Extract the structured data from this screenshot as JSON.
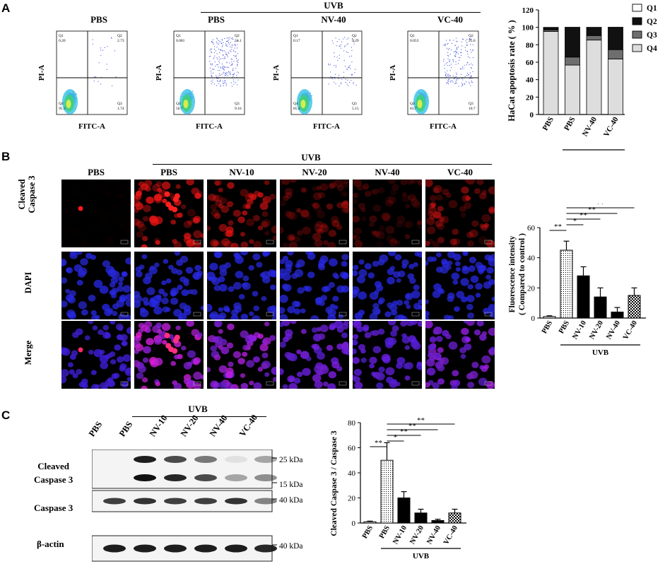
{
  "panels": {
    "a": "A",
    "b": "B",
    "c": "C"
  },
  "panel_a": {
    "uvb": "UVB",
    "flow_plots": [
      {
        "title": "PBS",
        "q1": "0.20",
        "q2": "2.73",
        "q3": "1.74",
        "q4": "95.3",
        "q1_label": "Q1",
        "q2_label": "Q2",
        "q3_label": "Q3",
        "q4_label": "Q4",
        "xlabel": "FITC-A",
        "ylabel": "PI-A"
      },
      {
        "title": "PBS",
        "q1": "0.081",
        "q2": "34.1",
        "q3": "9.16",
        "q4": "56.7",
        "q1_label": "Q1",
        "q2_label": "Q2",
        "q3_label": "Q3",
        "q4_label": "Q4",
        "xlabel": "FITC-A",
        "ylabel": "PI-A"
      },
      {
        "title": "NV-40",
        "q1": "0.17",
        "q2": "9.29",
        "q3": "5.15",
        "q4": "85.4",
        "q1_label": "Q1",
        "q2_label": "Q2",
        "q3_label": "Q3",
        "q4_label": "Q4",
        "xlabel": "FITC-A",
        "ylabel": "PI-A"
      },
      {
        "title": "VC-40",
        "q1": "0.053",
        "q2": "25.6",
        "q3": "10.7",
        "q4": "63.7",
        "q1_label": "Q1",
        "q2_label": "Q2",
        "q3_label": "Q3",
        "q4_label": "Q4",
        "xlabel": "FITC-A",
        "ylabel": "PI-A"
      }
    ]
  },
  "panel_b": {
    "uvb": "UVB",
    "columns": [
      "PBS",
      "PBS",
      "NV-10",
      "NV-20",
      "NV-40",
      "VC-40"
    ],
    "rows": [
      "Cleaved\nCaspase 3",
      "DAPI",
      "Merge"
    ],
    "row_line1": "Cleaved",
    "row_line2": "Caspase 3",
    "row_dapi": "DAPI",
    "row_merge": "Merge"
  },
  "panel_c": {
    "uvb": "UVB",
    "lanes": [
      "PBS",
      "PBS",
      "NV-10",
      "NV-20",
      "NV-40",
      "VC-40"
    ],
    "band_labels": {
      "cleaved1": "Cleaved",
      "cleaved2": "Caspase 3",
      "caspase": "Caspase 3",
      "actin": "β-actin"
    },
    "markers": {
      "m25": "25 kDa",
      "m15": "15 kDa",
      "m40a": "40 kDa",
      "m40b": "40 kDa"
    },
    "cleaved_top": [
      0,
      0.95,
      0.75,
      0.55,
      0.08,
      0.35
    ],
    "cleaved_bottom": [
      0,
      1.0,
      0.9,
      0.75,
      0.35,
      0.45
    ],
    "caspase": [
      0.8,
      0.85,
      0.8,
      0.8,
      0.85,
      0.5
    ],
    "actin": [
      0.95,
      0.95,
      0.95,
      0.95,
      0.95,
      0.9
    ]
  },
  "chart_data": [
    {
      "type": "bar",
      "stacked": true,
      "categories": [
        "PBS",
        "PBS",
        "NV-40",
        "VC-40"
      ],
      "group_label": "UVB",
      "ylabel": "HaCat apoptosis rate ( % )",
      "ylim": [
        0,
        120
      ],
      "yticks": [
        "0",
        "20",
        "40",
        "60",
        "80",
        "100",
        "120"
      ],
      "series": [
        {
          "name": "Q4",
          "color": "#dddddd",
          "values": [
            95.3,
            56.7,
            85.4,
            63.7
          ]
        },
        {
          "name": "Q3",
          "color": "#6e6e6e",
          "values": [
            1.74,
            9.16,
            5.15,
            10.7
          ]
        },
        {
          "name": "Q2",
          "color": "#111111",
          "values": [
            2.73,
            34.1,
            9.29,
            25.6
          ]
        },
        {
          "name": "Q1",
          "color": "#ffffff",
          "values": [
            0.2,
            0.081,
            0.17,
            0.053
          ]
        }
      ],
      "legend": [
        "Q1",
        "Q2",
        "Q3",
        "Q4"
      ],
      "legend_position": "right"
    },
    {
      "type": "bar",
      "categories": [
        "PBS",
        "PBS",
        "NV-10",
        "NV-20",
        "NV-40",
        "VC-40"
      ],
      "group_label": "UVB",
      "ylabel_line1": "Fluorescence intensity",
      "ylabel_line2": "( Compared to control )",
      "ylim": [
        0,
        60
      ],
      "yticks": [
        "0",
        "20",
        "40",
        "60"
      ],
      "values": [
        1,
        45,
        28,
        14,
        4,
        15
      ],
      "errors": [
        0.5,
        6,
        6,
        6,
        3,
        5
      ],
      "sig": [
        {
          "from": 1,
          "to": 0,
          "label": "**"
        },
        {
          "from": 1,
          "to": 2,
          "label": "*"
        },
        {
          "from": 1,
          "to": 3,
          "label": "**"
        },
        {
          "from": 1,
          "to": 4,
          "label": "**"
        },
        {
          "from": 1,
          "to": 5,
          "label": "**"
        }
      ]
    },
    {
      "type": "bar",
      "categories": [
        "PBS",
        "PBS",
        "NV-10",
        "NV-20",
        "NV-40",
        "VC-40"
      ],
      "group_label": "UVB",
      "ylabel": "Cleaved Caspase 3 / Caspase 3",
      "ylim": [
        0,
        80
      ],
      "yticks": [
        "0",
        "20",
        "40",
        "60",
        "80"
      ],
      "values": [
        1,
        50,
        20,
        8,
        2,
        8
      ],
      "errors": [
        0.5,
        14,
        5,
        3,
        1,
        3
      ],
      "sig": [
        {
          "from": 1,
          "to": 0,
          "label": "**"
        },
        {
          "from": 1,
          "to": 2,
          "label": "*"
        },
        {
          "from": 1,
          "to": 3,
          "label": "**"
        },
        {
          "from": 1,
          "to": 4,
          "label": "**"
        },
        {
          "from": 1,
          "to": 5,
          "label": "**"
        }
      ]
    }
  ]
}
